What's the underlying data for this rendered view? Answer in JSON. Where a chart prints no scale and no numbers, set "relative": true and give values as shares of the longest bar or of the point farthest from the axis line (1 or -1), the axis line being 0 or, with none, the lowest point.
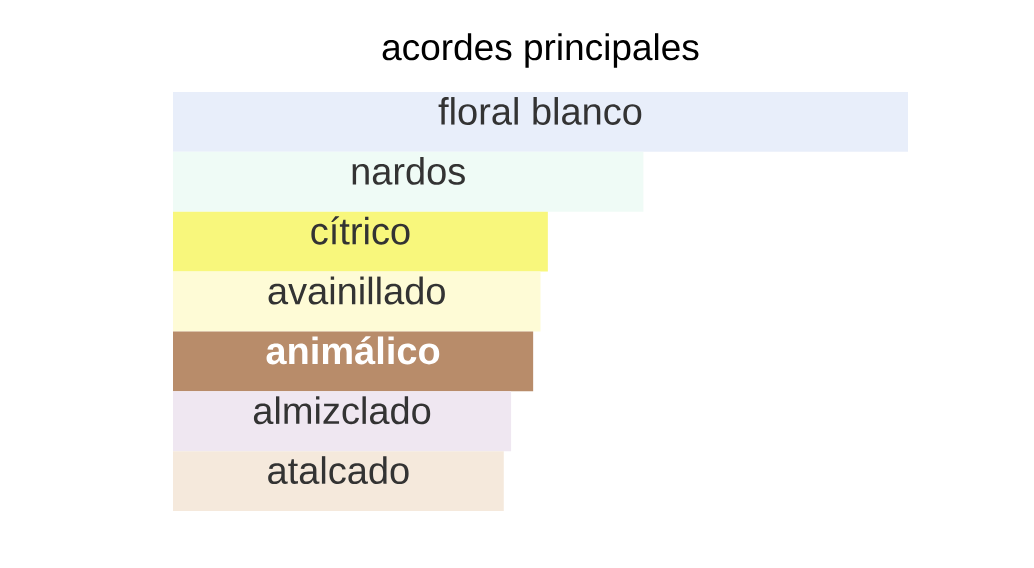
{
  "chart_data": {
    "type": "bar",
    "orientation": "horizontal",
    "relative": true,
    "title": "acordes principales",
    "categories": [
      "floral blanco",
      "nardos",
      "cítrico",
      "avainillado",
      "animálico",
      "almizclado",
      "atalcado"
    ],
    "values": [
      1,
      0.64,
      0.51,
      0.5,
      0.49,
      0.46,
      0.45
    ],
    "colors": [
      "#e8eefa",
      "#effbf6",
      "#f8f77c",
      "#fefbd6",
      "#b88c6a",
      "#efe7f1",
      "#f5e9dc"
    ]
  }
}
